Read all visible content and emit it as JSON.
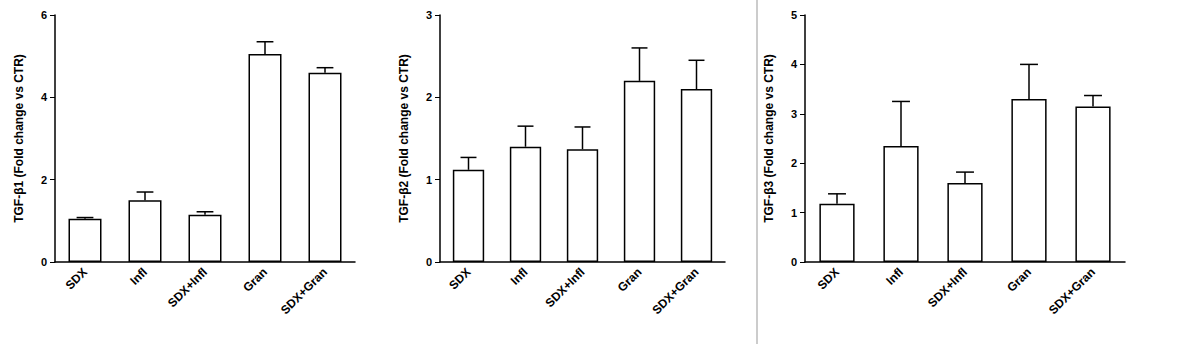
{
  "chart_data": [
    {
      "type": "bar",
      "y_label": "TGF-β1 (Fold change vs CTR)",
      "categories": [
        "SDX",
        "Infl",
        "SDX+Infl",
        "Gran",
        "SDX+Gran"
      ],
      "values": [
        1.05,
        1.5,
        1.15,
        5.05,
        4.6
      ],
      "errors": [
        0.03,
        0.2,
        0.07,
        0.3,
        0.12
      ],
      "color": "#ffffff",
      "ylim": [
        0,
        6
      ],
      "yticks": [
        0,
        2,
        4,
        6
      ],
      "grid": false
    },
    {
      "type": "bar",
      "y_label": "TGF-β2 (Fold change vs CTR)",
      "categories": [
        "SDX",
        "Infl",
        "SDX+Infl",
        "Gran",
        "SDX+Gran"
      ],
      "values": [
        1.12,
        1.4,
        1.37,
        2.2,
        2.1
      ],
      "errors": [
        0.15,
        0.25,
        0.27,
        0.4,
        0.35
      ],
      "color": "#ffffff",
      "ylim": [
        0,
        3
      ],
      "yticks": [
        0,
        1,
        2,
        3
      ],
      "grid": false
    },
    {
      "type": "bar",
      "y_label": "TGF-β3 (Fold change vs CTR)",
      "categories": [
        "SDX",
        "Infl",
        "SDX+Infl",
        "Gran",
        "SDX+Gran"
      ],
      "values": [
        1.18,
        2.35,
        1.6,
        3.3,
        3.15
      ],
      "errors": [
        0.2,
        0.9,
        0.22,
        0.7,
        0.22
      ],
      "color": "#ffffff",
      "ylim": [
        0,
        5
      ],
      "yticks": [
        0,
        1,
        2,
        3,
        4,
        5
      ],
      "grid": false
    }
  ]
}
